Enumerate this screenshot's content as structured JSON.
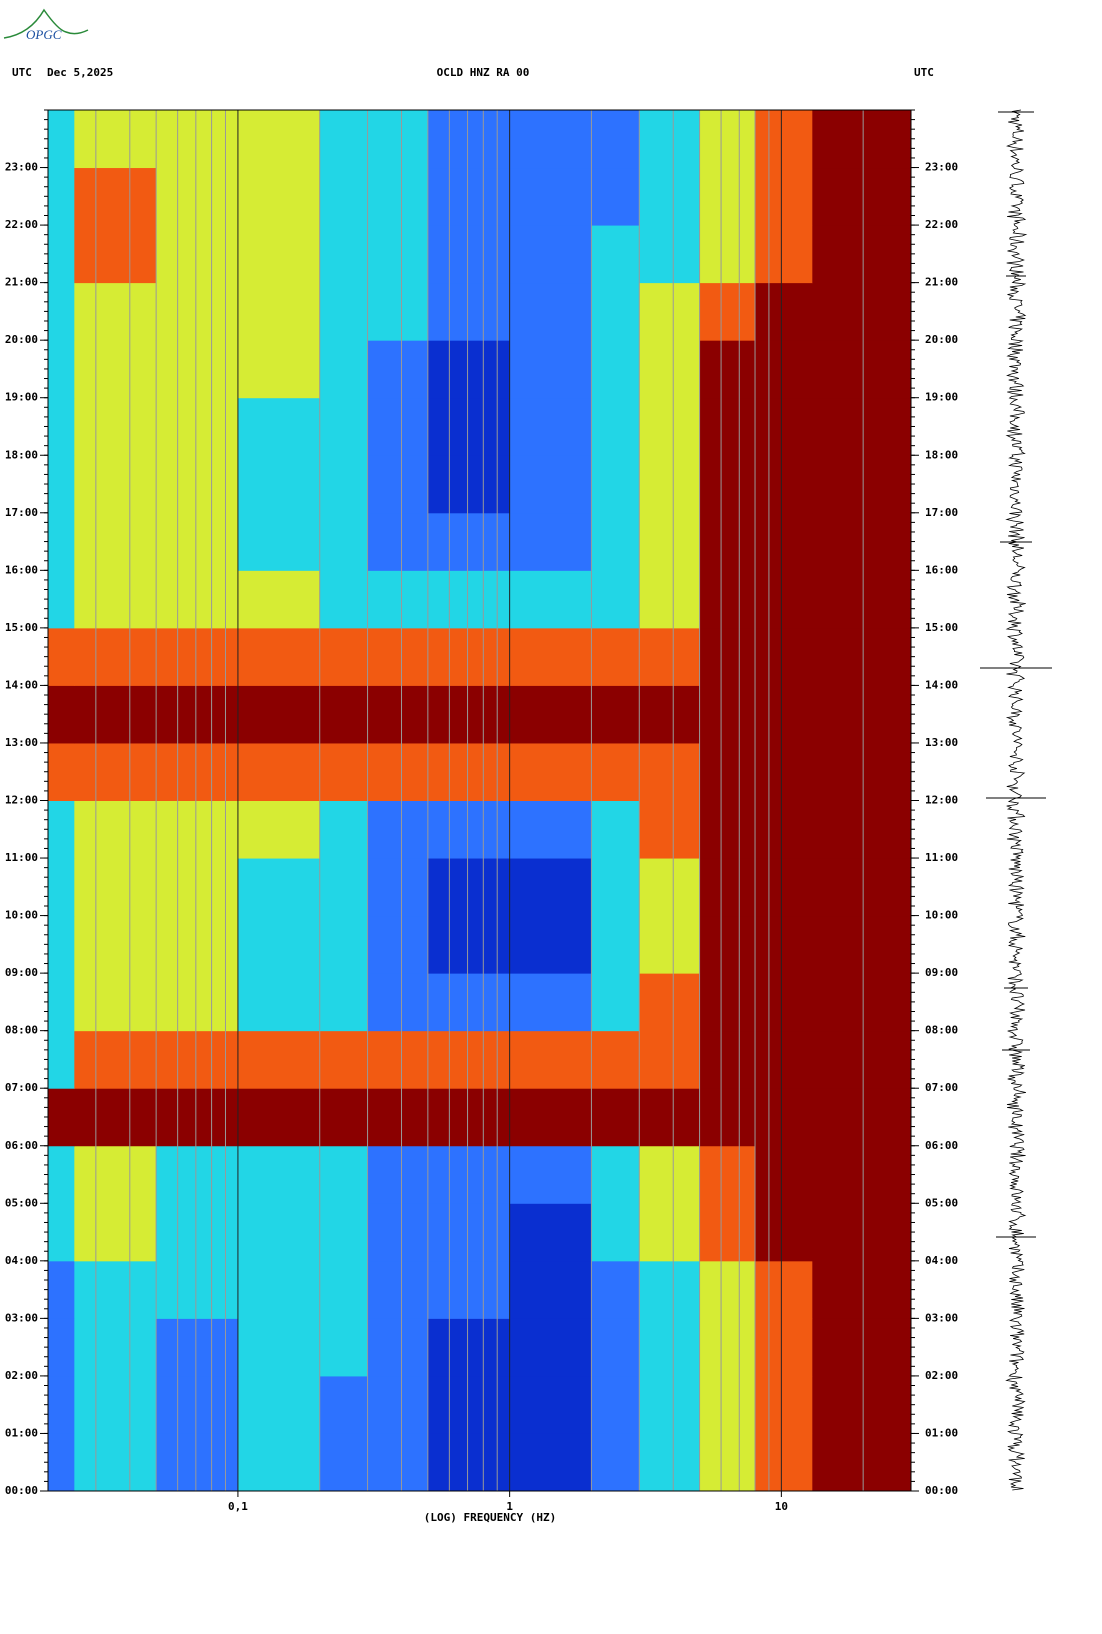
{
  "logo": "OPGC",
  "chart_data": {
    "type": "spectrogram",
    "title": "OCLD HNZ RA 00",
    "ylabel": "UTC",
    "date": "Dec 5,2025",
    "y2label": "UTC",
    "xlabel": "(LOG) FREQUENCY (HZ)",
    "xscale": "log",
    "xlim": [
      0.02,
      30
    ],
    "xticks": [
      {
        "value": 0.1,
        "label": "0,1"
      },
      1,
      10
    ],
    "ylim": [
      0,
      24
    ],
    "yticks": [
      {
        "value": 0,
        "label": "00:00"
      },
      {
        "value": 1,
        "label": "01:00"
      },
      {
        "value": 2,
        "label": "02:00"
      },
      {
        "value": 3,
        "label": "03:00"
      },
      {
        "value": 4,
        "label": "04:00"
      },
      {
        "value": 5,
        "label": "05:00"
      },
      {
        "value": 6,
        "label": "06:00"
      },
      {
        "value": 7,
        "label": "07:00"
      },
      {
        "value": 8,
        "label": "08:00"
      },
      {
        "value": 9,
        "label": "09:00"
      },
      {
        "value": 10,
        "label": "10:00"
      },
      {
        "value": 11,
        "label": "11:00"
      },
      {
        "value": 12,
        "label": "12:00"
      },
      {
        "value": 13,
        "label": "13:00"
      },
      {
        "value": 14,
        "label": "14:00"
      },
      {
        "value": 15,
        "label": "15:00"
      },
      {
        "value": 16,
        "label": "16:00"
      },
      {
        "value": 17,
        "label": "17:00"
      },
      {
        "value": 18,
        "label": "18:00"
      },
      {
        "value": 19,
        "label": "19:00"
      },
      {
        "value": 20,
        "label": "20:00"
      },
      {
        "value": 21,
        "label": "21:00"
      },
      {
        "value": 22,
        "label": "22:00"
      },
      {
        "value": 23,
        "label": "23:00"
      }
    ],
    "y2lim": [
      0,
      24
    ],
    "y2ticks": [
      {
        "value": 0,
        "label": "00:00"
      },
      {
        "value": 1,
        "label": "01:00"
      },
      {
        "value": 2,
        "label": "02:00"
      },
      {
        "value": 3,
        "label": "03:00"
      },
      {
        "value": 4,
        "label": "04:00"
      },
      {
        "value": 5,
        "label": "05:00"
      },
      {
        "value": 6,
        "label": "06:00"
      },
      {
        "value": 7,
        "label": "07:00"
      },
      {
        "value": 8,
        "label": "08:00"
      },
      {
        "value": 9,
        "label": "09:00"
      },
      {
        "value": 10,
        "label": "10:00"
      },
      {
        "value": 11,
        "label": "11:00"
      },
      {
        "value": 12,
        "label": "12:00"
      },
      {
        "value": 13,
        "label": "13:00"
      },
      {
        "value": 14,
        "label": "14:00"
      },
      {
        "value": 15,
        "label": "15:00"
      },
      {
        "value": 16,
        "label": "16:00"
      },
      {
        "value": 17,
        "label": "17:00"
      },
      {
        "value": 18,
        "label": "18:00"
      },
      {
        "value": 19,
        "label": "19:00"
      },
      {
        "value": 20,
        "label": "20:00"
      },
      {
        "value": 21,
        "label": "21:00"
      },
      {
        "value": 22,
        "label": "22:00"
      },
      {
        "value": 23,
        "label": "23:00"
      }
    ],
    "freq_bins": [
      0.02,
      0.025,
      0.05,
      0.1,
      0.2,
      0.3,
      0.5,
      1,
      2,
      3,
      5,
      8,
      13,
      30
    ],
    "colors": [
      "#0a2fd0",
      "#2d72ff",
      "#22d6e6",
      "#d6ec34",
      "#f25a12",
      "#8b0000"
    ],
    "values": [
      [
        1,
        2,
        1,
        2,
        1,
        1,
        0,
        0,
        1,
        2,
        3,
        4,
        5
      ],
      [
        1,
        2,
        1,
        2,
        1,
        1,
        0,
        0,
        1,
        2,
        3,
        4,
        5
      ],
      [
        1,
        2,
        1,
        2,
        2,
        1,
        0,
        0,
        1,
        2,
        3,
        4,
        5
      ],
      [
        1,
        2,
        2,
        2,
        2,
        1,
        1,
        0,
        1,
        2,
        3,
        4,
        5
      ],
      [
        2,
        3,
        2,
        2,
        2,
        1,
        1,
        0,
        2,
        3,
        4,
        5,
        5
      ],
      [
        2,
        3,
        2,
        2,
        2,
        1,
        1,
        1,
        2,
        3,
        4,
        5,
        5
      ],
      [
        5,
        5,
        5,
        5,
        5,
        5,
        5,
        5,
        5,
        5,
        5,
        5,
        5
      ],
      [
        2,
        4,
        4,
        4,
        4,
        4,
        4,
        4,
        4,
        4,
        5,
        5,
        5
      ],
      [
        2,
        3,
        3,
        2,
        2,
        1,
        1,
        1,
        2,
        4,
        5,
        5,
        5
      ],
      [
        2,
        3,
        3,
        2,
        2,
        1,
        0,
        0,
        2,
        3,
        5,
        5,
        5
      ],
      [
        2,
        3,
        3,
        2,
        2,
        1,
        0,
        0,
        2,
        3,
        5,
        5,
        5
      ],
      [
        2,
        3,
        3,
        3,
        2,
        1,
        1,
        1,
        2,
        4,
        5,
        5,
        5
      ],
      [
        4,
        4,
        4,
        4,
        4,
        4,
        4,
        4,
        4,
        4,
        5,
        5,
        5
      ],
      [
        5,
        5,
        5,
        5,
        5,
        5,
        5,
        5,
        5,
        5,
        5,
        5,
        5
      ],
      [
        4,
        4,
        4,
        4,
        4,
        4,
        4,
        4,
        4,
        4,
        5,
        5,
        5
      ],
      [
        2,
        3,
        3,
        3,
        2,
        2,
        2,
        2,
        2,
        3,
        5,
        5,
        5
      ],
      [
        2,
        3,
        3,
        2,
        2,
        1,
        1,
        1,
        2,
        3,
        5,
        5,
        5
      ],
      [
        2,
        3,
        3,
        2,
        2,
        1,
        0,
        1,
        2,
        3,
        5,
        5,
        5
      ],
      [
        2,
        3,
        3,
        2,
        2,
        1,
        0,
        1,
        2,
        3,
        5,
        5,
        5
      ],
      [
        2,
        3,
        3,
        3,
        2,
        1,
        0,
        1,
        2,
        3,
        5,
        5,
        5
      ],
      [
        2,
        3,
        3,
        3,
        2,
        2,
        1,
        1,
        2,
        3,
        4,
        5,
        5
      ],
      [
        2,
        4,
        3,
        3,
        2,
        2,
        1,
        1,
        2,
        2,
        3,
        4,
        5
      ],
      [
        2,
        4,
        3,
        3,
        2,
        2,
        1,
        1,
        1,
        2,
        3,
        4,
        5
      ],
      [
        2,
        3,
        3,
        3,
        2,
        2,
        1,
        1,
        1,
        2,
        3,
        4,
        5
      ]
    ]
  }
}
